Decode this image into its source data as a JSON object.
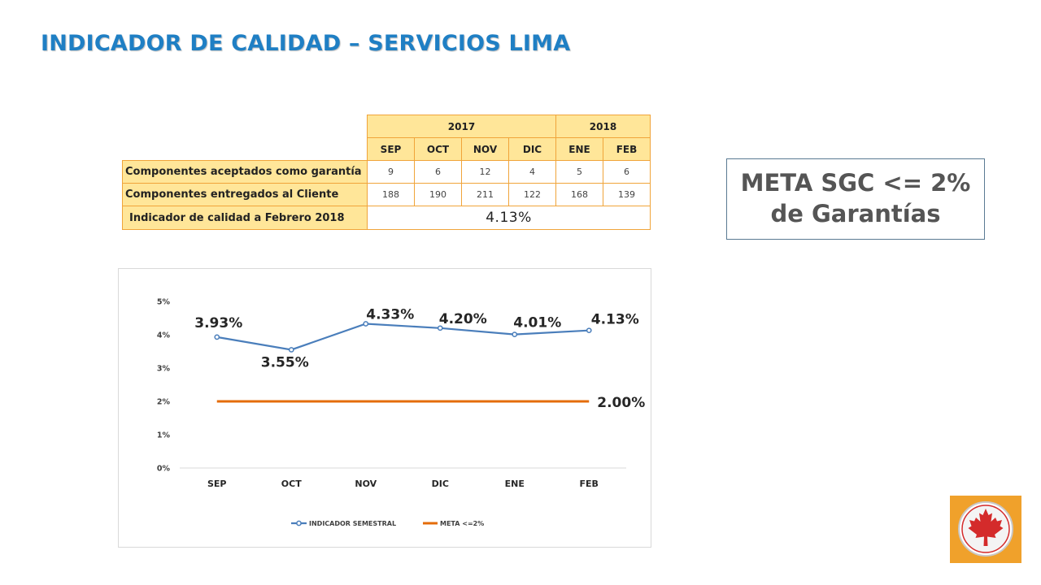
{
  "title": "INDICADOR DE CALIDAD – SERVICIOS LIMA",
  "table": {
    "years": [
      {
        "label": "2017",
        "span": 4
      },
      {
        "label": "2018",
        "span": 2
      }
    ],
    "months": [
      "SEP",
      "OCT",
      "NOV",
      "DIC",
      "ENE",
      "FEB"
    ],
    "rows": [
      {
        "label": "Componentes aceptados como garantía",
        "values": [
          "9",
          "6",
          "12",
          "4",
          "5",
          "6"
        ]
      },
      {
        "label": "Componentes entregados al Cliente",
        "values": [
          "188",
          "190",
          "211",
          "122",
          "168",
          "139"
        ]
      }
    ],
    "summary": {
      "label": "Indicador de calidad a Febrero 2018",
      "value": "4.13%"
    }
  },
  "meta_box": {
    "line1": "META SGC <= 2%",
    "line2": "de Garantías"
  },
  "chart_data": {
    "type": "line",
    "categories": [
      "SEP",
      "OCT",
      "NOV",
      "DIC",
      "ENE",
      "FEB"
    ],
    "series": [
      {
        "name": "INDICADOR SEMESTRAL",
        "values": [
          3.93,
          3.55,
          4.33,
          4.2,
          4.01,
          4.13
        ],
        "labels": [
          "3.93%",
          "3.55%",
          "4.33%",
          "4.20%",
          "4.01%",
          "4.13%"
        ],
        "color": "#4a7ebb",
        "markers": true
      },
      {
        "name": "META <=2%",
        "values": [
          2,
          2,
          2,
          2,
          2,
          2
        ],
        "end_label": "2.00%",
        "color": "#e46c0a",
        "markers": false
      }
    ],
    "yticks": [
      "0%",
      "1%",
      "2%",
      "3%",
      "4%",
      "5%"
    ],
    "ylim": [
      0,
      5
    ],
    "grid": false,
    "legend": "bottom"
  },
  "logo": {
    "icon": "maple-leaf-icon",
    "background": "#f0a12b",
    "leaf_color": "#d42b2b"
  }
}
